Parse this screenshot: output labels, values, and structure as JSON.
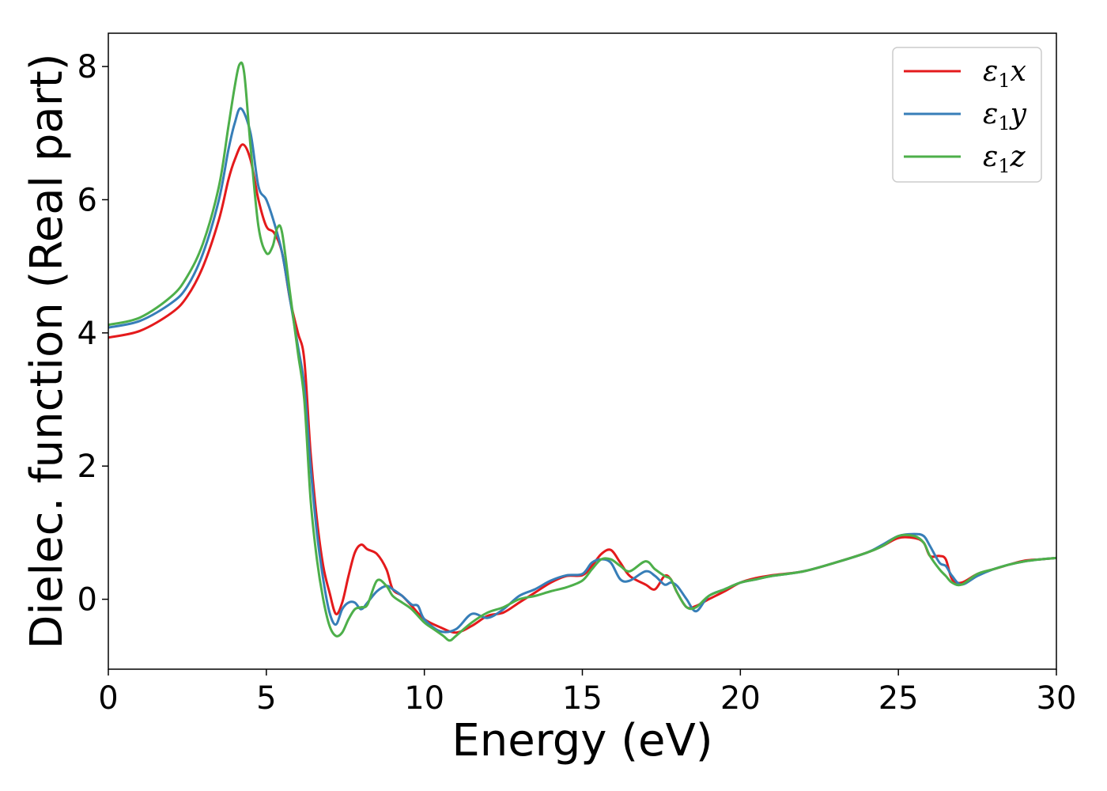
{
  "chart_data": {
    "type": "line",
    "xlabel": "Energy (eV)",
    "ylabel": "Dielec. function (Real part)",
    "xlim": [
      0,
      30
    ],
    "ylim": [
      -1.05,
      8.5
    ],
    "xticks": [
      "0",
      "5",
      "10",
      "15",
      "20",
      "25",
      "30"
    ],
    "yticks": [
      "0",
      "2",
      "4",
      "6",
      "8"
    ],
    "grid": false,
    "legend_position": "top-right",
    "series": [
      {
        "name": "ε1x",
        "label_base": "ε",
        "label_sub": "1",
        "label_tail": "x",
        "color": "#e41a1c",
        "x": [
          0,
          1,
          2,
          2.5,
          3,
          3.5,
          3.8,
          4.0,
          4.25,
          4.5,
          4.75,
          5.0,
          5.25,
          5.5,
          5.75,
          6.0,
          6.2,
          6.4,
          6.6,
          6.8,
          7.0,
          7.2,
          7.4,
          7.6,
          7.8,
          8.0,
          8.2,
          8.5,
          8.8,
          9.0,
          9.3,
          9.6,
          10.0,
          10.5,
          11.0,
          11.5,
          12.0,
          12.5,
          13.0,
          13.5,
          14.0,
          14.5,
          15.0,
          15.3,
          15.6,
          15.9,
          16.2,
          16.5,
          17.0,
          17.3,
          17.6,
          17.8,
          18.0,
          18.3,
          18.6,
          19.0,
          19.5,
          20.0,
          20.5,
          21.0,
          22.0,
          23.0,
          24.0,
          24.5,
          25.0,
          25.5,
          25.8,
          26.0,
          26.3,
          26.5,
          26.7,
          27.0,
          27.5,
          28.0,
          28.5,
          29.0,
          29.5,
          30.0
        ],
        "y": [
          3.93,
          4.03,
          4.3,
          4.55,
          5.0,
          5.7,
          6.3,
          6.6,
          6.83,
          6.6,
          6.0,
          5.6,
          5.5,
          5.2,
          4.5,
          4.0,
          3.6,
          2.2,
          1.2,
          0.5,
          0.1,
          -0.22,
          -0.05,
          0.35,
          0.7,
          0.82,
          0.75,
          0.68,
          0.45,
          0.15,
          0.05,
          -0.1,
          -0.3,
          -0.42,
          -0.5,
          -0.4,
          -0.25,
          -0.2,
          -0.05,
          0.1,
          0.25,
          0.35,
          0.36,
          0.5,
          0.68,
          0.74,
          0.55,
          0.35,
          0.22,
          0.15,
          0.35,
          0.3,
          0.1,
          -0.12,
          -0.1,
          0.0,
          0.12,
          0.25,
          0.32,
          0.36,
          0.42,
          0.55,
          0.7,
          0.8,
          0.92,
          0.92,
          0.85,
          0.65,
          0.65,
          0.6,
          0.3,
          0.25,
          0.38,
          0.45,
          0.52,
          0.58,
          0.6,
          0.62
        ]
      },
      {
        "name": "ε1y",
        "label_base": "ε",
        "label_sub": "1",
        "label_tail": "y",
        "color": "#377eb8",
        "x": [
          0,
          1,
          2,
          2.5,
          3,
          3.5,
          3.8,
          4.0,
          4.2,
          4.5,
          4.75,
          5.0,
          5.25,
          5.5,
          5.75,
          6.0,
          6.2,
          6.4,
          6.6,
          6.8,
          7.0,
          7.2,
          7.4,
          7.6,
          7.8,
          8.0,
          8.2,
          8.5,
          8.8,
          9.0,
          9.3,
          9.6,
          9.8,
          10.0,
          10.5,
          11.0,
          11.5,
          12.0,
          12.5,
          13.0,
          13.5,
          14.0,
          14.5,
          15.0,
          15.3,
          15.6,
          15.9,
          16.2,
          16.5,
          17.0,
          17.3,
          17.6,
          17.8,
          18.0,
          18.3,
          18.6,
          19.0,
          19.5,
          20.0,
          20.5,
          21.0,
          22.0,
          23.0,
          24.0,
          24.5,
          25.0,
          25.5,
          25.8,
          26.0,
          26.3,
          26.5,
          26.7,
          27.0,
          27.5,
          28.0,
          28.5,
          29.0,
          29.5,
          30.0
        ],
        "y": [
          4.08,
          4.18,
          4.45,
          4.7,
          5.2,
          6.0,
          6.75,
          7.15,
          7.37,
          7.0,
          6.2,
          6.0,
          5.65,
          5.2,
          4.5,
          3.8,
          3.2,
          2.0,
          1.0,
          0.3,
          -0.2,
          -0.38,
          -0.15,
          -0.05,
          -0.05,
          -0.15,
          -0.05,
          0.12,
          0.2,
          0.15,
          0.05,
          -0.08,
          -0.1,
          -0.3,
          -0.48,
          -0.45,
          -0.22,
          -0.28,
          -0.15,
          0.05,
          0.15,
          0.28,
          0.36,
          0.38,
          0.55,
          0.6,
          0.55,
          0.3,
          0.28,
          0.42,
          0.35,
          0.22,
          0.25,
          0.2,
          0.0,
          -0.18,
          0.05,
          0.15,
          0.25,
          0.3,
          0.35,
          0.42,
          0.55,
          0.7,
          0.82,
          0.95,
          0.98,
          0.95,
          0.8,
          0.55,
          0.5,
          0.35,
          0.22,
          0.35,
          0.45,
          0.52,
          0.57,
          0.6,
          0.62
        ]
      },
      {
        "name": "ε1z",
        "label_base": "ε",
        "label_sub": "1",
        "label_tail": "z",
        "color": "#4daf4a",
        "x": [
          0,
          1,
          2,
          2.5,
          3,
          3.5,
          3.8,
          4.0,
          4.15,
          4.3,
          4.5,
          4.75,
          5.0,
          5.2,
          5.35,
          5.5,
          5.75,
          6.0,
          6.2,
          6.4,
          6.6,
          6.8,
          7.0,
          7.2,
          7.4,
          7.6,
          7.8,
          8.0,
          8.2,
          8.5,
          8.8,
          9.0,
          9.3,
          9.6,
          10.0,
          10.3,
          10.6,
          10.8,
          11.0,
          11.5,
          12.0,
          12.5,
          13.0,
          13.5,
          14.0,
          14.5,
          15.0,
          15.3,
          15.6,
          15.9,
          16.2,
          16.5,
          17.0,
          17.3,
          17.6,
          17.8,
          18.0,
          18.3,
          18.6,
          19.0,
          19.5,
          20.0,
          20.5,
          21.0,
          22.0,
          23.0,
          24.0,
          24.5,
          25.0,
          25.5,
          25.8,
          26.0,
          26.3,
          26.5,
          26.7,
          27.0,
          27.5,
          28.0,
          28.5,
          29.0,
          29.5,
          30.0
        ],
        "y": [
          4.12,
          4.23,
          4.55,
          4.85,
          5.35,
          6.2,
          7.1,
          7.7,
          8.03,
          7.9,
          6.8,
          5.6,
          5.2,
          5.3,
          5.58,
          5.5,
          4.6,
          3.7,
          3.0,
          1.5,
          0.6,
          0.0,
          -0.4,
          -0.55,
          -0.5,
          -0.3,
          -0.15,
          -0.12,
          -0.08,
          0.28,
          0.2,
          0.05,
          -0.05,
          -0.15,
          -0.35,
          -0.45,
          -0.55,
          -0.62,
          -0.55,
          -0.35,
          -0.2,
          -0.12,
          0.0,
          0.05,
          0.12,
          0.18,
          0.28,
          0.45,
          0.6,
          0.6,
          0.5,
          0.42,
          0.57,
          0.45,
          0.35,
          0.3,
          0.1,
          -0.12,
          -0.12,
          0.05,
          0.15,
          0.25,
          0.3,
          0.35,
          0.42,
          0.55,
          0.7,
          0.8,
          0.95,
          0.95,
          0.85,
          0.65,
          0.45,
          0.35,
          0.25,
          0.22,
          0.38,
          0.45,
          0.52,
          0.57,
          0.6,
          0.62
        ]
      }
    ]
  }
}
